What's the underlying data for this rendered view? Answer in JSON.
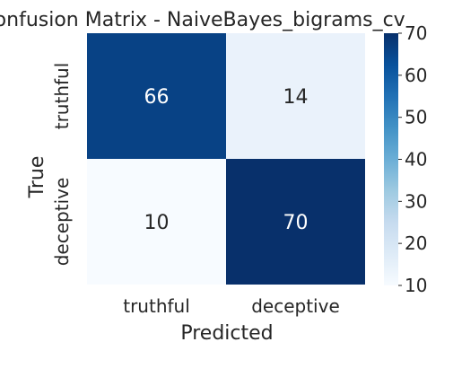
{
  "chart_data": {
    "type": "heatmap",
    "title": "Confusion Matrix - NaiveBayes_bigrams_cv",
    "xlabel": "Predicted",
    "ylabel": "True",
    "x_categories": [
      "truthful",
      "deceptive"
    ],
    "y_categories": [
      "truthful",
      "deceptive"
    ],
    "values": [
      [
        66,
        14
      ],
      [
        10,
        70
      ]
    ],
    "colormap": "Blues",
    "colorbar": {
      "range": [
        10,
        70
      ],
      "ticks": [
        "10",
        "20",
        "30",
        "40",
        "50",
        "60",
        "70"
      ]
    }
  }
}
